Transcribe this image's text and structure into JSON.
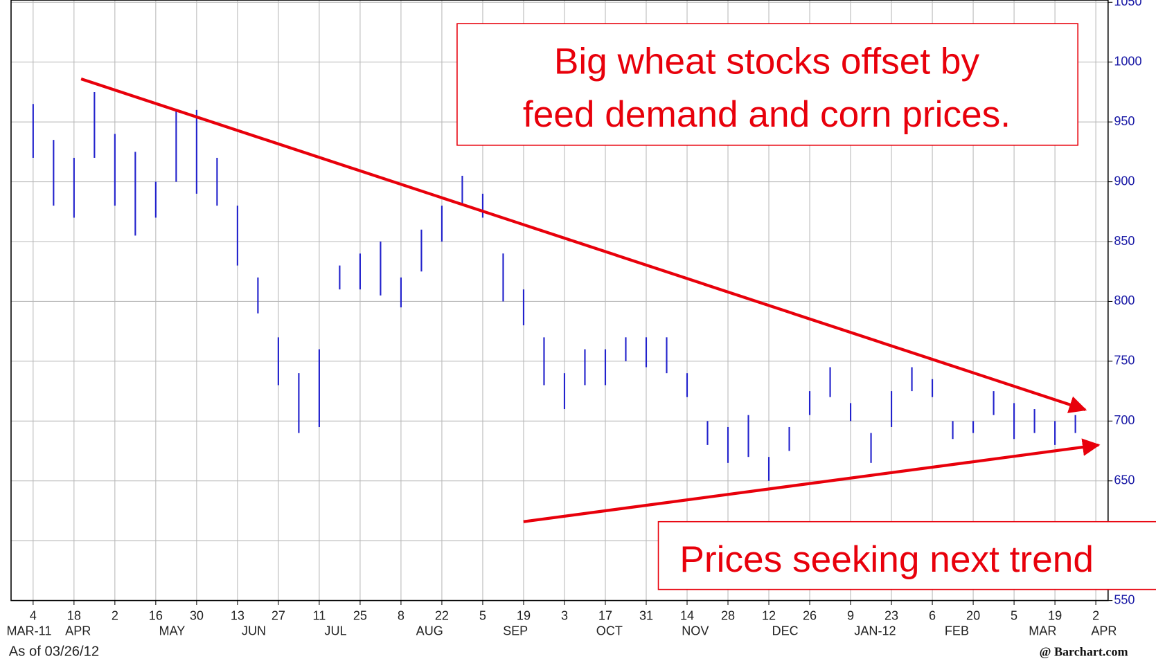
{
  "chart_data": {
    "type": "ohlc",
    "color": "#2222cc",
    "xlim": [
      -0.54,
      26.3
    ],
    "ylim": [
      550,
      1050
    ],
    "yticks": [
      550,
      600,
      650,
      700,
      750,
      800,
      850,
      900,
      950,
      1000,
      1050
    ],
    "xticks": [
      {
        "value": 0,
        "label": "4"
      },
      {
        "value": 1,
        "label": "18"
      },
      {
        "value": 2,
        "label": "2"
      },
      {
        "value": 3,
        "label": "16"
      },
      {
        "value": 4,
        "label": "30"
      },
      {
        "value": 5,
        "label": "13"
      },
      {
        "value": 6,
        "label": "27"
      },
      {
        "value": 7,
        "label": "11"
      },
      {
        "value": 8,
        "label": "25"
      },
      {
        "value": 9,
        "label": "8"
      },
      {
        "value": 10,
        "label": "22"
      },
      {
        "value": 11,
        "label": "5"
      },
      {
        "value": 12,
        "label": "19"
      },
      {
        "value": 13,
        "label": "3"
      },
      {
        "value": 14,
        "label": "17"
      },
      {
        "value": 15,
        "label": "31"
      },
      {
        "value": 16,
        "label": "14"
      },
      {
        "value": 17,
        "label": "28"
      },
      {
        "value": 18,
        "label": "12"
      },
      {
        "value": 19,
        "label": "26"
      },
      {
        "value": 20,
        "label": "9"
      },
      {
        "value": 21,
        "label": "23"
      },
      {
        "value": 22,
        "label": "6"
      },
      {
        "value": 23,
        "label": "20"
      },
      {
        "value": 24,
        "label": "5"
      },
      {
        "value": 25,
        "label": "19"
      },
      {
        "value": 26,
        "label": "2"
      }
    ],
    "month_ticks": [
      {
        "value": -0.1,
        "label": "MAR-11"
      },
      {
        "value": 1.1,
        "label": "APR"
      },
      {
        "value": 3.4,
        "label": "MAY"
      },
      {
        "value": 5.4,
        "label": "JUN"
      },
      {
        "value": 7.4,
        "label": "JUL"
      },
      {
        "value": 9.7,
        "label": "AUG"
      },
      {
        "value": 11.8,
        "label": "SEP"
      },
      {
        "value": 14.1,
        "label": "OCT"
      },
      {
        "value": 16.2,
        "label": "NOV"
      },
      {
        "value": 18.4,
        "label": "DEC"
      },
      {
        "value": 20.6,
        "label": "JAN-12"
      },
      {
        "value": 22.6,
        "label": "FEB"
      },
      {
        "value": 24.7,
        "label": "MAR"
      },
      {
        "value": 26.2,
        "label": "APR"
      }
    ],
    "x": [
      0,
      0.5,
      1,
      1.5,
      2,
      2.5,
      3,
      3.5,
      4,
      4.5,
      5,
      5.5,
      6,
      6.5,
      7,
      7.5,
      8,
      8.5,
      9,
      9.5,
      10,
      10.5,
      11,
      11.5,
      12,
      12.5,
      13,
      13.5,
      14,
      14.5,
      15,
      15.5,
      16,
      16.5,
      17,
      17.5,
      18,
      18.5,
      19,
      19.5,
      20,
      20.5,
      21,
      21.5,
      22,
      22.5,
      23,
      23.5,
      24,
      24.5,
      25,
      25.5
    ],
    "high": [
      965,
      935,
      920,
      975,
      940,
      925,
      900,
      960,
      960,
      920,
      880,
      820,
      770,
      740,
      760,
      830,
      840,
      850,
      820,
      860,
      880,
      905,
      890,
      840,
      810,
      770,
      740,
      760,
      760,
      770,
      770,
      770,
      740,
      700,
      695,
      705,
      670,
      695,
      725,
      745,
      715,
      690,
      725,
      745,
      735,
      700,
      700,
      725,
      715,
      710,
      700,
      705
    ],
    "low": [
      920,
      880,
      870,
      920,
      880,
      855,
      870,
      900,
      890,
      880,
      830,
      790,
      730,
      690,
      695,
      810,
      810,
      805,
      795,
      825,
      850,
      880,
      870,
      800,
      780,
      730,
      710,
      730,
      730,
      750,
      745,
      740,
      720,
      680,
      665,
      670,
      650,
      675,
      705,
      720,
      700,
      665,
      695,
      725,
      720,
      685,
      690,
      705,
      685,
      690,
      680,
      690
    ],
    "date_note": "As of 03/26/12",
    "source": "@ Barchart.com",
    "annotations": [
      "Big wheat stocks offset by",
      "feed demand and corn prices.",
      "Prices seeking next trend"
    ]
  }
}
